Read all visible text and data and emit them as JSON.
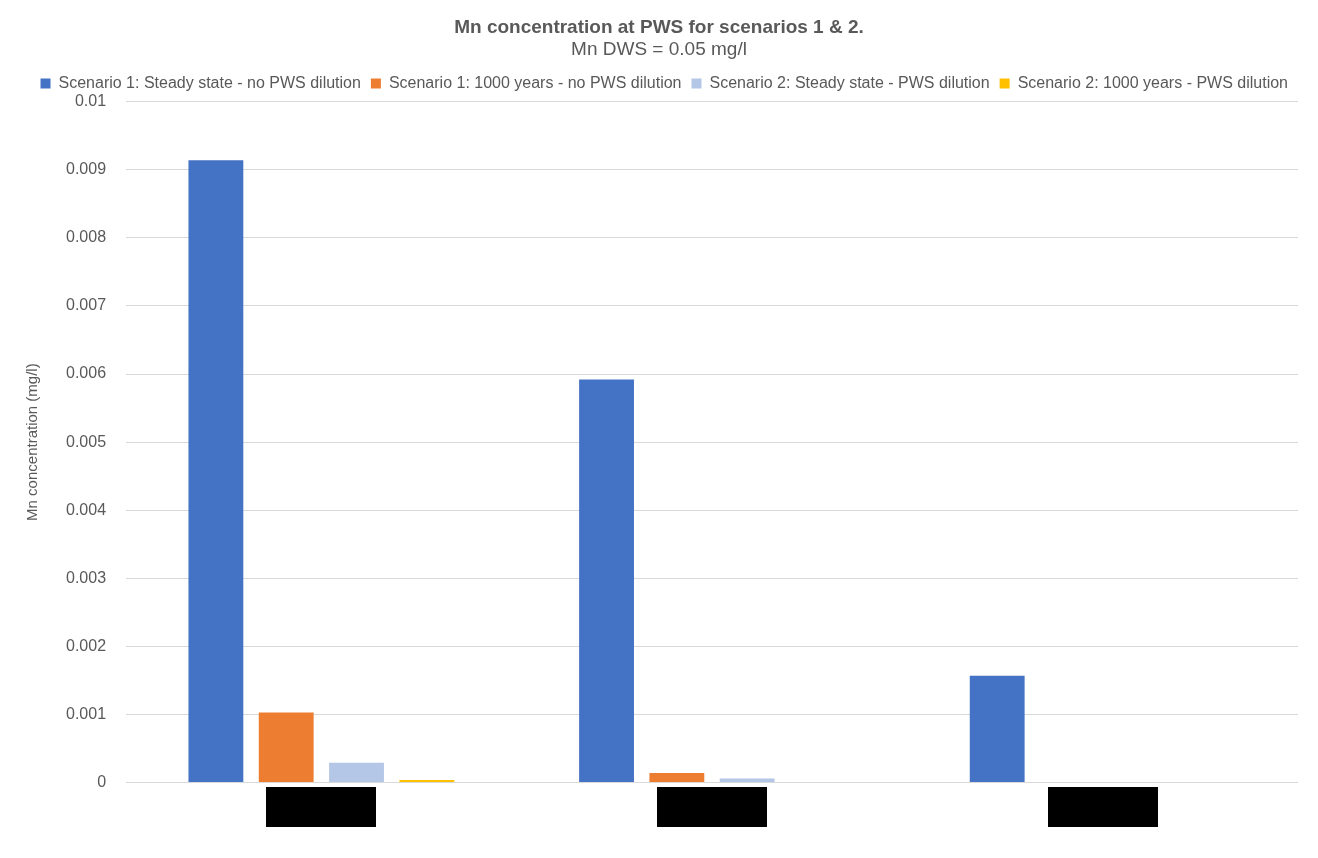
{
  "chart_data": {
    "type": "bar",
    "title": "Mn concentration at PWS for scenarios 1 & 2.",
    "subtitle": "Mn DWS = 0.05 mg/l",
    "ylabel": "Mn concentration (mg/l)",
    "categories": [
      null,
      null,
      null
    ],
    "series": [
      {
        "name": "Scenario 1: Steady state - no PWS dilution",
        "color": "#4472c4",
        "values": [
          0.00914,
          0.00592,
          0.00157
        ]
      },
      {
        "name": "Scenario 1: 1000 years - no PWS dilution",
        "color": "#ed7d31",
        "values": [
          0.00103,
          0.00014,
          0
        ]
      },
      {
        "name": "Scenario 2: Steady state - PWS dilution",
        "color": "#b4c7e7",
        "values": [
          0.00029,
          6e-05,
          1e-05
        ]
      },
      {
        "name": "Scenario 2: 1000 years - PWS dilution",
        "color": "#ffc000",
        "values": [
          4e-05,
          0,
          0
        ]
      }
    ],
    "ylim": [
      0,
      0.01
    ],
    "yticks": [
      0,
      0.001,
      0.002,
      0.003,
      0.004,
      0.005,
      0.006,
      0.007,
      0.008,
      0.009,
      0.01
    ],
    "grid": "y",
    "legend": "top right"
  }
}
